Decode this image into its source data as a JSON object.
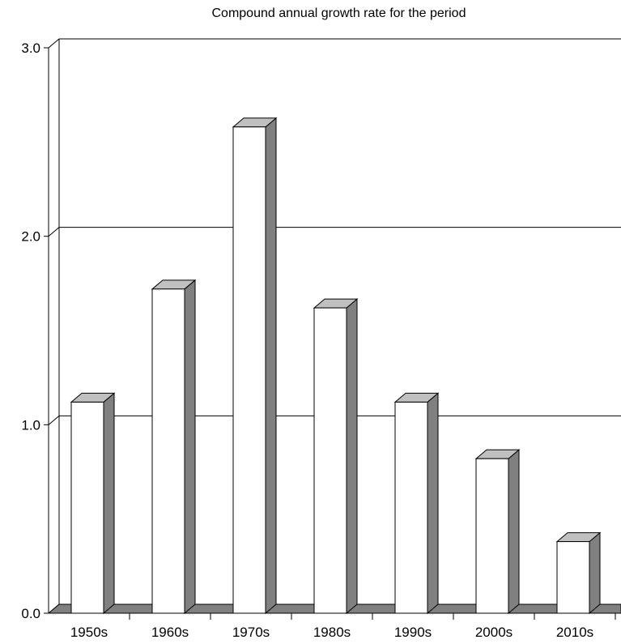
{
  "chart_data": {
    "type": "bar",
    "title": "Compound annual growth rate for the period",
    "xlabel": "",
    "ylabel": "",
    "categories": [
      "1950s",
      "1960s",
      "1970s",
      "1980s",
      "1990s",
      "2000s",
      "2010s"
    ],
    "values": [
      1.12,
      1.72,
      2.58,
      1.62,
      1.12,
      0.82,
      0.38
    ],
    "ylim": [
      0,
      3
    ],
    "yticks": [
      "0.0",
      "1.0",
      "2.0",
      "3.0"
    ],
    "grid": true,
    "style": "3d",
    "colors": {
      "bar_front": "#ffffff",
      "bar_side": "#808080",
      "bar_top": "#c0c0c0",
      "floor": "#808080",
      "line": "#000000"
    }
  }
}
